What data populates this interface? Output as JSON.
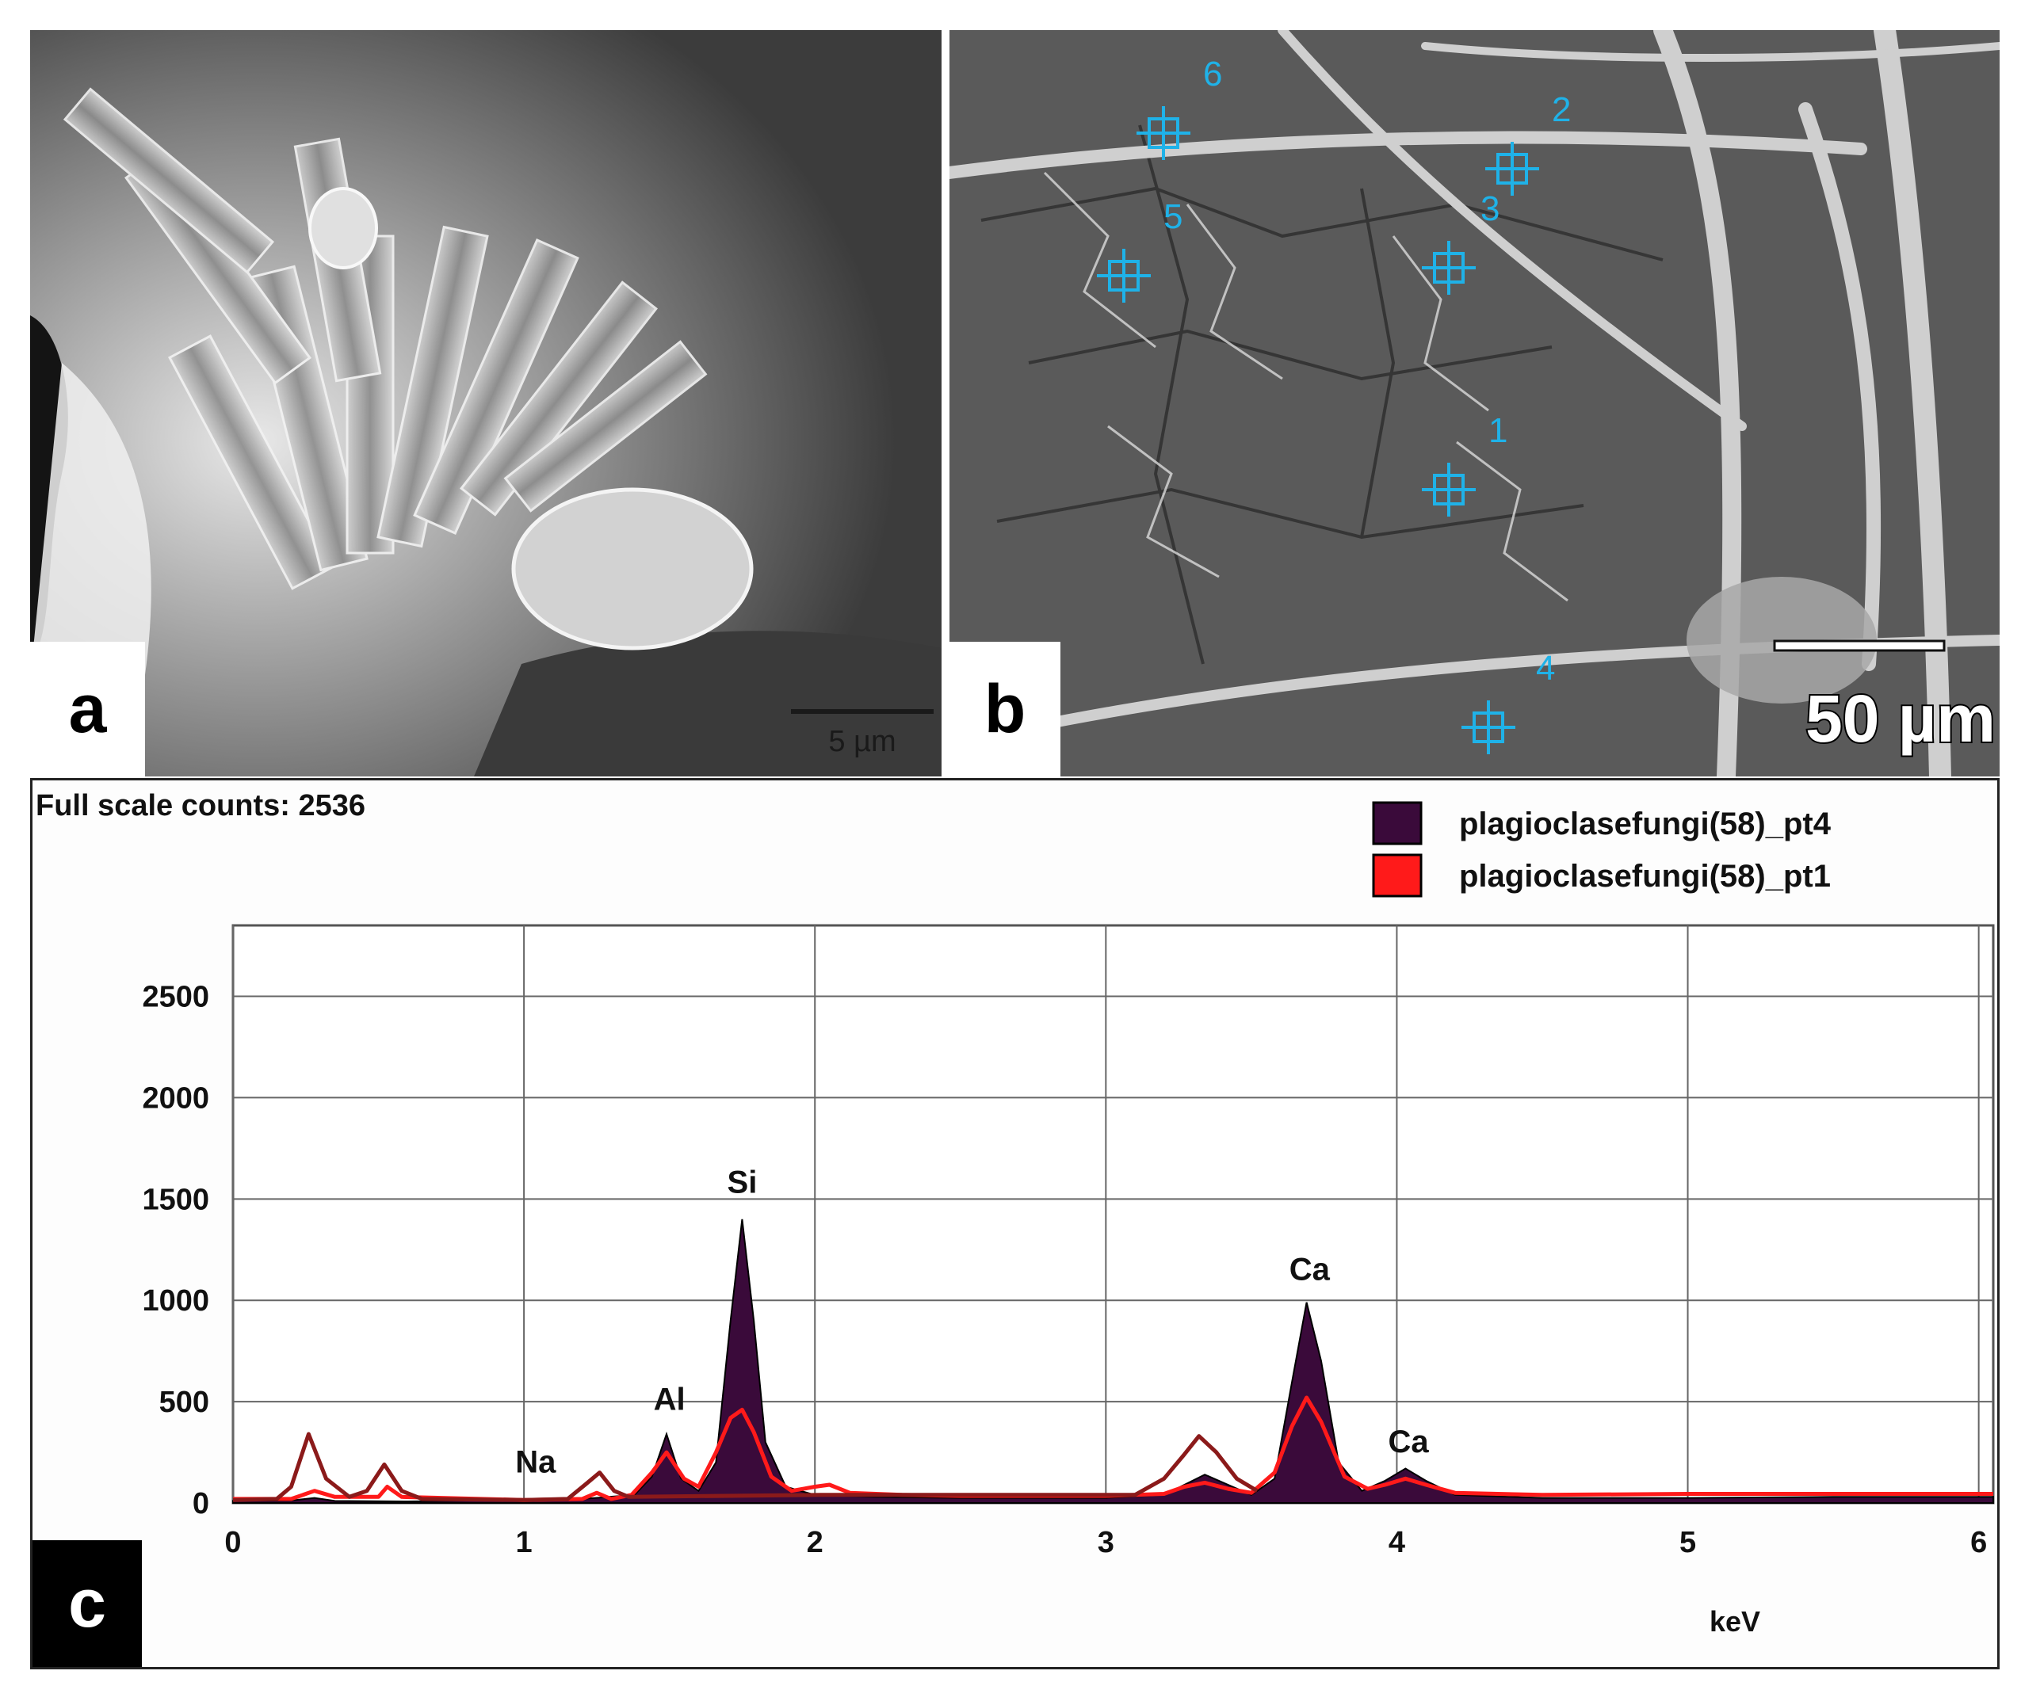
{
  "panels": {
    "a": {
      "letter": "a",
      "scale_bar_label": "5 µm"
    },
    "b": {
      "letter": "b",
      "scale_bar_label": "50 µm",
      "marker_color": "#1fb2e8",
      "points": [
        {
          "label": "1"
        },
        {
          "label": "2"
        },
        {
          "label": "3"
        },
        {
          "label": "4"
        },
        {
          "label": "5"
        },
        {
          "label": "6"
        }
      ]
    },
    "c": {
      "letter": "c"
    }
  },
  "chart_data": {
    "type": "line",
    "title": "Full scale counts: 2536",
    "xlabel": "keV",
    "ylabel": "",
    "xlim": [
      0,
      6.05
    ],
    "ylim": [
      0,
      2850
    ],
    "x_ticks": [
      0,
      1,
      2,
      3,
      4,
      5,
      6
    ],
    "y_ticks": [
      0,
      500,
      1000,
      1500,
      2000,
      2500
    ],
    "grid": true,
    "legend_position": "top-right",
    "series": [
      {
        "name": "plagioclasefungi(58)_pt4",
        "color": "#3a0a3a",
        "fill": true,
        "points": [
          [
            0,
            10
          ],
          [
            0.2,
            12
          ],
          [
            0.28,
            25
          ],
          [
            0.35,
            10
          ],
          [
            0.6,
            8
          ],
          [
            1.0,
            15
          ],
          [
            1.2,
            20
          ],
          [
            1.38,
            40
          ],
          [
            1.44,
            130
          ],
          [
            1.49,
            340
          ],
          [
            1.54,
            120
          ],
          [
            1.6,
            60
          ],
          [
            1.66,
            200
          ],
          [
            1.71,
            900
          ],
          [
            1.75,
            1400
          ],
          [
            1.79,
            900
          ],
          [
            1.83,
            300
          ],
          [
            1.9,
            80
          ],
          [
            2.0,
            40
          ],
          [
            2.2,
            30
          ],
          [
            2.5,
            25
          ],
          [
            3.0,
            25
          ],
          [
            3.2,
            40
          ],
          [
            3.27,
            90
          ],
          [
            3.34,
            140
          ],
          [
            3.42,
            90
          ],
          [
            3.5,
            40
          ],
          [
            3.58,
            120
          ],
          [
            3.64,
            600
          ],
          [
            3.69,
            990
          ],
          [
            3.74,
            700
          ],
          [
            3.8,
            200
          ],
          [
            3.88,
            60
          ],
          [
            3.96,
            110
          ],
          [
            4.03,
            170
          ],
          [
            4.1,
            110
          ],
          [
            4.2,
            40
          ],
          [
            4.5,
            25
          ],
          [
            5.0,
            25
          ],
          [
            5.5,
            30
          ],
          [
            6.05,
            30
          ]
        ]
      },
      {
        "name": "plagioclasefungi(58)_pt1",
        "color": "#ff1a1a",
        "fill": false,
        "points": [
          [
            0,
            20
          ],
          [
            0.2,
            20
          ],
          [
            0.28,
            60
          ],
          [
            0.35,
            30
          ],
          [
            0.5,
            30
          ],
          [
            0.53,
            80
          ],
          [
            0.58,
            30
          ],
          [
            1.0,
            15
          ],
          [
            1.2,
            20
          ],
          [
            1.25,
            50
          ],
          [
            1.3,
            20
          ],
          [
            1.37,
            40
          ],
          [
            1.44,
            150
          ],
          [
            1.49,
            250
          ],
          [
            1.55,
            120
          ],
          [
            1.6,
            80
          ],
          [
            1.66,
            250
          ],
          [
            1.71,
            420
          ],
          [
            1.75,
            460
          ],
          [
            1.79,
            350
          ],
          [
            1.85,
            130
          ],
          [
            1.92,
            60
          ],
          [
            2.0,
            80
          ],
          [
            2.05,
            90
          ],
          [
            2.12,
            50
          ],
          [
            2.3,
            40
          ],
          [
            2.5,
            35
          ],
          [
            3.0,
            35
          ],
          [
            3.2,
            45
          ],
          [
            3.27,
            80
          ],
          [
            3.34,
            100
          ],
          [
            3.42,
            70
          ],
          [
            3.5,
            50
          ],
          [
            3.58,
            150
          ],
          [
            3.64,
            380
          ],
          [
            3.69,
            520
          ],
          [
            3.74,
            400
          ],
          [
            3.82,
            130
          ],
          [
            3.9,
            70
          ],
          [
            3.96,
            90
          ],
          [
            4.03,
            120
          ],
          [
            4.1,
            90
          ],
          [
            4.2,
            50
          ],
          [
            4.5,
            40
          ],
          [
            5.0,
            45
          ],
          [
            5.5,
            45
          ],
          [
            6.05,
            45
          ]
        ]
      },
      {
        "name": "",
        "color": "#8b1a1a",
        "fill": false,
        "points": [
          [
            0,
            15
          ],
          [
            0.15,
            20
          ],
          [
            0.2,
            80
          ],
          [
            0.26,
            340
          ],
          [
            0.32,
            120
          ],
          [
            0.4,
            30
          ],
          [
            0.46,
            60
          ],
          [
            0.52,
            190
          ],
          [
            0.58,
            60
          ],
          [
            0.65,
            20
          ],
          [
            1.0,
            15
          ],
          [
            1.15,
            20
          ],
          [
            1.21,
            90
          ],
          [
            1.26,
            150
          ],
          [
            1.31,
            60
          ],
          [
            1.36,
            30
          ],
          [
            2.02,
            40
          ],
          [
            3.1,
            40
          ],
          [
            3.2,
            120
          ],
          [
            3.27,
            240
          ],
          [
            3.32,
            330
          ],
          [
            3.38,
            250
          ],
          [
            3.45,
            120
          ],
          [
            3.52,
            60
          ]
        ]
      }
    ],
    "annotations": [
      {
        "text": "Na",
        "x": 1.04,
        "y": 150
      },
      {
        "text": "Al",
        "x": 1.5,
        "y": 460
      },
      {
        "text": "Si",
        "x": 1.75,
        "y": 1530
      },
      {
        "text": "Ca",
        "x": 3.7,
        "y": 1100
      },
      {
        "text": "Ca",
        "x": 4.04,
        "y": 250
      }
    ]
  }
}
